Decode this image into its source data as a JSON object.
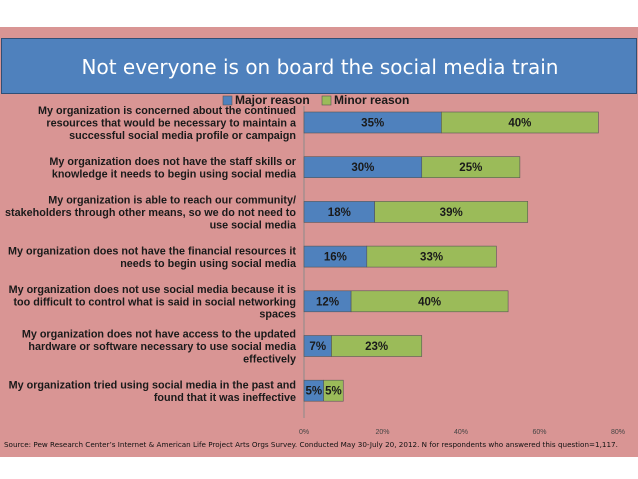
{
  "page": {
    "title": "Not everyone is on board the social media train",
    "source": "Source: Pew Research Center’s Internet & American Life Project Arts Orgs Survey. Conducted May 30-July 20, 2012. N for respondents who answered this question=1,117."
  },
  "colors": {
    "panel": "#d99594",
    "title_bg": "#4f81bd",
    "major": "#4f81bd",
    "minor": "#9bbb59"
  },
  "chart_data": {
    "type": "bar",
    "orientation": "horizontal",
    "stacked": true,
    "categories": [
      "My organization is concerned about the continued resources that would be necessary to maintain a successful social media profile or campaign",
      "My organization does not have the staff skills or knowledge it needs to begin using social media",
      "My organization is able to reach our community/ stakeholders through other means, so we do not need to use social media",
      "My organization does not have the financial resources it needs to begin using social media",
      "My organization does not use social media because it is too difficult to control what is said in social networking spaces",
      "My organization does not have access to the updated hardware or software necessary to use social media effectively",
      "My organization tried using social media in the past and found that it was ineffective"
    ],
    "category_lines": [
      [
        "My organization is concerned about the continued",
        "resources that would be necessary to maintain a",
        "successful social media profile or campaign"
      ],
      [
        "My organization does not have the staff skills or",
        "knowledge it needs to begin using social media"
      ],
      [
        "My organization is able to reach our community/",
        "stakeholders through other means, so we do not need to",
        "use social media"
      ],
      [
        "My organization does not have the financial resources it",
        "needs to begin using social media"
      ],
      [
        "My organization does not use social media because it is",
        "too difficult to control what is said in social networking",
        "spaces"
      ],
      [
        "My organization does not have access to the updated",
        "hardware or software necessary to use social media",
        "effectively"
      ],
      [
        "My organization tried using social media in the past and",
        "found that it was ineffective"
      ]
    ],
    "series": [
      {
        "name": "Major reason",
        "values": [
          35,
          30,
          18,
          16,
          12,
          7,
          5
        ],
        "labels": [
          "35%",
          "30%",
          "18%",
          "16%",
          "12%",
          "7%",
          "5%"
        ]
      },
      {
        "name": "Minor reason",
        "values": [
          40,
          25,
          39,
          33,
          40,
          23,
          5
        ],
        "labels": [
          "40%",
          "25%",
          "39%",
          "33%",
          "40%",
          "23%",
          "5%"
        ]
      }
    ],
    "xlim": [
      0,
      80
    ],
    "xticks": [
      0,
      20,
      40,
      60,
      80
    ],
    "xtick_labels": [
      "0%",
      "20%",
      "40%",
      "60%",
      "80%"
    ],
    "grid": false,
    "legend": "top-center"
  }
}
